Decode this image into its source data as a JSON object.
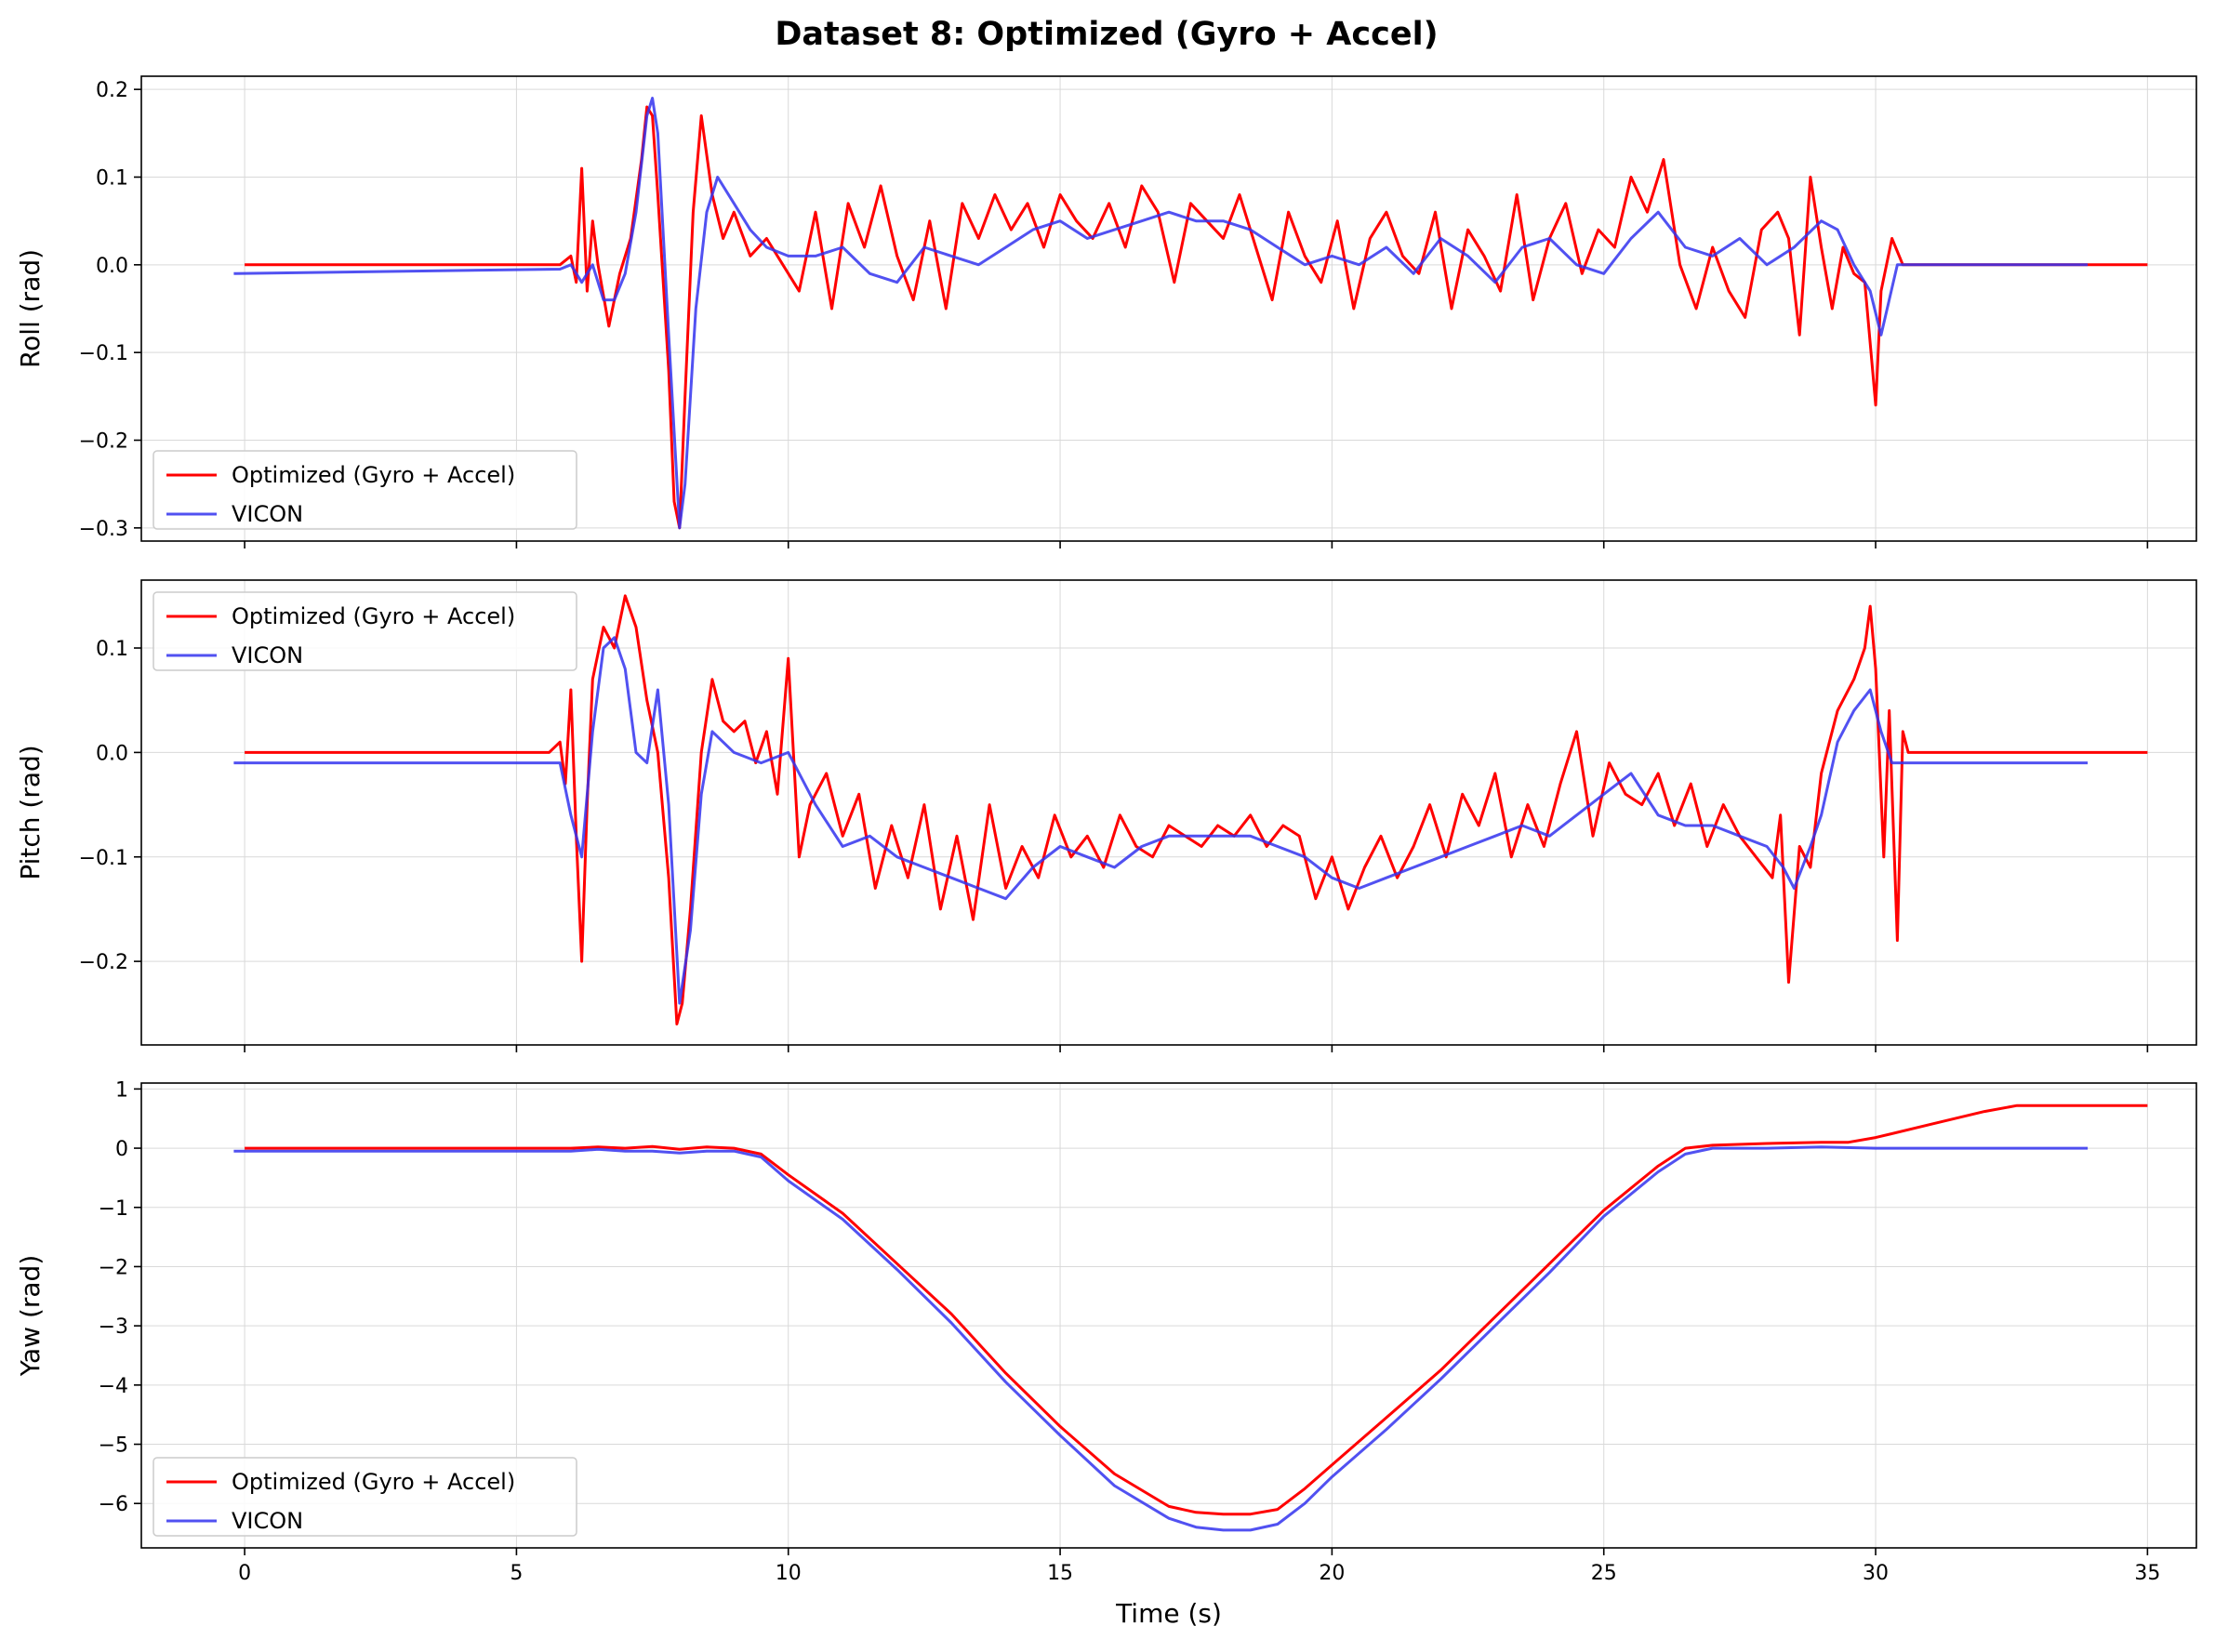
{
  "title": "Dataset 8: Optimized (Gyro + Accel)",
  "colors": {
    "optimized": "#ff0000",
    "vicon": "#3333ee",
    "grid": "#d9d9d9"
  },
  "chart_data": [
    {
      "type": "line",
      "ylabel": "Roll (rad)",
      "xlabel": "",
      "xlim": [
        -1.9,
        35.9
      ],
      "ylim": [
        -0.315,
        0.215
      ],
      "yticks": [
        -0.3,
        -0.2,
        -0.1,
        0.0,
        0.1,
        0.2
      ],
      "ytick_labels": [
        "−0.3",
        "−0.2",
        "−0.1",
        "0.0",
        "0.1",
        "0.2"
      ],
      "xticks": [
        0,
        5,
        10,
        15,
        20,
        25,
        30,
        35
      ],
      "show_xtick_labels": false,
      "grid": true,
      "legend_position": "lower-left",
      "series": [
        {
          "name": "Optimized (Gyro + Accel)",
          "color": "#ff0000",
          "x": [
            0,
            5.8,
            6.0,
            6.1,
            6.2,
            6.3,
            6.4,
            6.5,
            6.7,
            6.9,
            7.1,
            7.3,
            7.4,
            7.5,
            7.6,
            7.8,
            7.9,
            8.0,
            8.1,
            8.25,
            8.4,
            8.6,
            8.8,
            9.0,
            9.3,
            9.6,
            9.9,
            10.2,
            10.5,
            10.8,
            11.1,
            11.4,
            11.7,
            12.0,
            12.3,
            12.6,
            12.9,
            13.2,
            13.5,
            13.8,
            14.1,
            14.4,
            14.7,
            15.0,
            15.3,
            15.6,
            15.9,
            16.2,
            16.5,
            16.8,
            17.1,
            17.4,
            17.7,
            18.0,
            18.3,
            18.6,
            18.9,
            19.2,
            19.5,
            19.8,
            20.1,
            20.4,
            20.7,
            21.0,
            21.3,
            21.6,
            21.9,
            22.2,
            22.5,
            22.8,
            23.1,
            23.4,
            23.7,
            24.0,
            24.3,
            24.6,
            24.9,
            25.2,
            25.5,
            25.8,
            26.1,
            26.4,
            26.7,
            27.0,
            27.3,
            27.6,
            27.9,
            28.2,
            28.4,
            28.6,
            28.8,
            29.0,
            29.2,
            29.4,
            29.6,
            29.8,
            30.0,
            30.1,
            30.3,
            30.5,
            31.0,
            32.0,
            33.0,
            34.0,
            35.0
          ],
          "y": [
            0.0,
            0.0,
            0.01,
            -0.02,
            0.11,
            -0.03,
            0.05,
            0.0,
            -0.07,
            -0.01,
            0.03,
            0.12,
            0.18,
            0.17,
            0.08,
            -0.12,
            -0.27,
            -0.3,
            -0.15,
            0.06,
            0.17,
            0.08,
            0.03,
            0.06,
            0.01,
            0.03,
            0.0,
            -0.03,
            0.06,
            -0.05,
            0.07,
            0.02,
            0.09,
            0.01,
            -0.04,
            0.05,
            -0.05,
            0.07,
            0.03,
            0.08,
            0.04,
            0.07,
            0.02,
            0.08,
            0.05,
            0.03,
            0.07,
            0.02,
            0.09,
            0.06,
            -0.02,
            0.07,
            0.05,
            0.03,
            0.08,
            0.02,
            -0.04,
            0.06,
            0.01,
            -0.02,
            0.05,
            -0.05,
            0.03,
            0.06,
            0.01,
            -0.01,
            0.06,
            -0.05,
            0.04,
            0.01,
            -0.03,
            0.08,
            -0.04,
            0.03,
            0.07,
            -0.01,
            0.04,
            0.02,
            0.1,
            0.06,
            0.12,
            0.0,
            -0.05,
            0.02,
            -0.03,
            -0.06,
            0.04,
            0.06,
            0.03,
            -0.08,
            0.1,
            0.02,
            -0.05,
            0.02,
            -0.01,
            -0.02,
            -0.16,
            -0.03,
            0.03,
            0.0,
            0.0,
            0.0,
            0.0,
            0.0,
            0.0
          ]
        },
        {
          "name": "VICON",
          "color": "#3333ee",
          "x": [
            -0.2,
            5.8,
            6.0,
            6.2,
            6.4,
            6.6,
            6.8,
            7.0,
            7.2,
            7.4,
            7.5,
            7.6,
            7.8,
            8.0,
            8.1,
            8.3,
            8.5,
            8.7,
            9.0,
            9.3,
            9.6,
            10.0,
            10.5,
            11.0,
            11.5,
            12.0,
            12.5,
            13.0,
            13.5,
            14.0,
            14.5,
            15.0,
            15.5,
            16.0,
            16.5,
            17.0,
            17.5,
            18.0,
            18.5,
            19.0,
            19.5,
            20.0,
            20.5,
            21.0,
            21.5,
            22.0,
            22.5,
            23.0,
            23.5,
            24.0,
            24.5,
            25.0,
            25.5,
            26.0,
            26.5,
            27.0,
            27.5,
            28.0,
            28.5,
            29.0,
            29.3,
            29.6,
            29.9,
            30.1,
            30.4,
            31.0,
            32.0,
            33.0,
            33.9
          ],
          "y": [
            -0.01,
            -0.005,
            0.0,
            -0.02,
            0.0,
            -0.04,
            -0.04,
            -0.01,
            0.06,
            0.17,
            0.19,
            0.15,
            -0.08,
            -0.3,
            -0.25,
            -0.05,
            0.06,
            0.1,
            0.07,
            0.04,
            0.02,
            0.01,
            0.01,
            0.02,
            -0.01,
            -0.02,
            0.02,
            0.01,
            0.0,
            0.02,
            0.04,
            0.05,
            0.03,
            0.04,
            0.05,
            0.06,
            0.05,
            0.05,
            0.04,
            0.02,
            0.0,
            0.01,
            0.0,
            0.02,
            -0.01,
            0.03,
            0.01,
            -0.02,
            0.02,
            0.03,
            0.0,
            -0.01,
            0.03,
            0.06,
            0.02,
            0.01,
            0.03,
            0.0,
            0.02,
            0.05,
            0.04,
            0.0,
            -0.03,
            -0.08,
            0.0,
            0.0,
            0.0,
            0.0,
            0.0
          ]
        }
      ]
    },
    {
      "type": "line",
      "ylabel": "Pitch (rad)",
      "xlabel": "",
      "xlim": [
        -1.9,
        35.9
      ],
      "ylim": [
        -0.28,
        0.165
      ],
      "yticks": [
        -0.2,
        -0.1,
        0.0,
        0.1
      ],
      "ytick_labels": [
        "−0.2",
        "−0.1",
        "0.0",
        "0.1"
      ],
      "xticks": [
        0,
        5,
        10,
        15,
        20,
        25,
        30,
        35
      ],
      "show_xtick_labels": false,
      "grid": true,
      "legend_position": "upper-left",
      "series": [
        {
          "name": "Optimized (Gyro + Accel)",
          "color": "#ff0000",
          "x": [
            0,
            5.6,
            5.8,
            5.9,
            6.0,
            6.1,
            6.2,
            6.3,
            6.4,
            6.6,
            6.8,
            7.0,
            7.2,
            7.4,
            7.6,
            7.8,
            7.95,
            8.05,
            8.2,
            8.4,
            8.6,
            8.8,
            9.0,
            9.2,
            9.4,
            9.6,
            9.8,
            10.0,
            10.2,
            10.4,
            10.7,
            11.0,
            11.3,
            11.6,
            11.9,
            12.2,
            12.5,
            12.8,
            13.1,
            13.4,
            13.7,
            14.0,
            14.3,
            14.6,
            14.9,
            15.2,
            15.5,
            15.8,
            16.1,
            16.4,
            16.7,
            17.0,
            17.3,
            17.6,
            17.9,
            18.2,
            18.5,
            18.8,
            19.1,
            19.4,
            19.7,
            20.0,
            20.3,
            20.6,
            20.9,
            21.2,
            21.5,
            21.8,
            22.1,
            22.4,
            22.7,
            23.0,
            23.3,
            23.6,
            23.9,
            24.2,
            24.5,
            24.8,
            25.1,
            25.4,
            25.7,
            26.0,
            26.3,
            26.6,
            26.9,
            27.2,
            27.5,
            27.8,
            28.1,
            28.25,
            28.4,
            28.6,
            28.8,
            29.0,
            29.3,
            29.6,
            29.8,
            29.9,
            30.0,
            30.15,
            30.25,
            30.4,
            30.5,
            30.6,
            31.0,
            32.0,
            33.0,
            34.0,
            35.0
          ],
          "y": [
            0.0,
            0.0,
            0.01,
            -0.03,
            0.06,
            -0.08,
            -0.2,
            -0.05,
            0.07,
            0.12,
            0.1,
            0.15,
            0.12,
            0.05,
            0.0,
            -0.12,
            -0.26,
            -0.24,
            -0.15,
            0.0,
            0.07,
            0.03,
            0.02,
            0.03,
            -0.01,
            0.02,
            -0.04,
            0.09,
            -0.1,
            -0.05,
            -0.02,
            -0.08,
            -0.04,
            -0.13,
            -0.07,
            -0.12,
            -0.05,
            -0.15,
            -0.08,
            -0.16,
            -0.05,
            -0.13,
            -0.09,
            -0.12,
            -0.06,
            -0.1,
            -0.08,
            -0.11,
            -0.06,
            -0.09,
            -0.1,
            -0.07,
            -0.08,
            -0.09,
            -0.07,
            -0.08,
            -0.06,
            -0.09,
            -0.07,
            -0.08,
            -0.14,
            -0.1,
            -0.15,
            -0.11,
            -0.08,
            -0.12,
            -0.09,
            -0.05,
            -0.1,
            -0.04,
            -0.07,
            -0.02,
            -0.1,
            -0.05,
            -0.09,
            -0.03,
            0.02,
            -0.08,
            -0.01,
            -0.04,
            -0.05,
            -0.02,
            -0.07,
            -0.03,
            -0.09,
            -0.05,
            -0.08,
            -0.1,
            -0.12,
            -0.06,
            -0.22,
            -0.09,
            -0.11,
            -0.02,
            0.04,
            0.07,
            0.1,
            0.14,
            0.08,
            -0.1,
            0.04,
            -0.18,
            0.02,
            0.0,
            0.0,
            0.0,
            0.0,
            0.0,
            0.0
          ]
        },
        {
          "name": "VICON",
          "color": "#3333ee",
          "x": [
            -0.2,
            5.5,
            5.8,
            6.0,
            6.2,
            6.4,
            6.6,
            6.8,
            7.0,
            7.2,
            7.4,
            7.6,
            7.8,
            8.0,
            8.2,
            8.4,
            8.6,
            9.0,
            9.5,
            10.0,
            10.5,
            11.0,
            11.5,
            12.0,
            12.5,
            13.0,
            13.5,
            14.0,
            14.5,
            15.0,
            15.5,
            16.0,
            16.5,
            17.0,
            17.5,
            18.0,
            18.5,
            19.0,
            19.5,
            20.0,
            20.5,
            21.0,
            21.5,
            22.0,
            22.5,
            23.0,
            23.5,
            24.0,
            24.5,
            25.0,
            25.5,
            26.0,
            26.5,
            27.0,
            27.5,
            28.0,
            28.3,
            28.5,
            28.8,
            29.0,
            29.3,
            29.6,
            29.9,
            30.1,
            30.3,
            30.5,
            31.0,
            32.0,
            33.0,
            33.9
          ],
          "y": [
            -0.01,
            -0.01,
            -0.01,
            -0.06,
            -0.1,
            0.02,
            0.1,
            0.11,
            0.08,
            0.0,
            -0.01,
            0.06,
            -0.05,
            -0.24,
            -0.17,
            -0.04,
            0.02,
            0.0,
            -0.01,
            0.0,
            -0.05,
            -0.09,
            -0.08,
            -0.1,
            -0.11,
            -0.12,
            -0.13,
            -0.14,
            -0.11,
            -0.09,
            -0.1,
            -0.11,
            -0.09,
            -0.08,
            -0.08,
            -0.08,
            -0.08,
            -0.09,
            -0.1,
            -0.12,
            -0.13,
            -0.12,
            -0.11,
            -0.1,
            -0.09,
            -0.08,
            -0.07,
            -0.08,
            -0.06,
            -0.04,
            -0.02,
            -0.06,
            -0.07,
            -0.07,
            -0.08,
            -0.09,
            -0.11,
            -0.13,
            -0.09,
            -0.06,
            0.01,
            0.04,
            0.06,
            0.02,
            -0.01,
            -0.01,
            -0.01,
            -0.01,
            -0.01,
            -0.01
          ]
        }
      ]
    },
    {
      "type": "line",
      "ylabel": "Yaw (rad)",
      "xlabel": "Time (s)",
      "xlim": [
        -1.9,
        35.9
      ],
      "ylim": [
        -6.75,
        1.1
      ],
      "yticks": [
        -6,
        -5,
        -4,
        -3,
        -2,
        -1,
        0,
        1
      ],
      "ytick_labels": [
        "−6",
        "−5",
        "−4",
        "−3",
        "−2",
        "−1",
        "0",
        "1"
      ],
      "xticks": [
        0,
        5,
        10,
        15,
        20,
        25,
        30,
        35
      ],
      "xtick_labels": [
        "0",
        "5",
        "10",
        "15",
        "20",
        "25",
        "30",
        "35"
      ],
      "show_xtick_labels": true,
      "grid": true,
      "legend_position": "lower-left",
      "series": [
        {
          "name": "Optimized (Gyro + Accel)",
          "color": "#ff0000",
          "x": [
            0,
            5.5,
            6.0,
            6.5,
            7.0,
            7.5,
            8.0,
            8.5,
            9.0,
            9.5,
            10.0,
            11.0,
            12.0,
            13.0,
            14.0,
            15.0,
            16.0,
            17.0,
            17.5,
            18.0,
            18.5,
            19.0,
            19.5,
            20.0,
            21.0,
            22.0,
            23.0,
            24.0,
            25.0,
            26.0,
            26.5,
            27.0,
            28.0,
            29.0,
            29.5,
            30.0,
            31.0,
            32.0,
            32.6,
            33.0,
            34.0,
            35.0
          ],
          "y": [
            0.0,
            0.0,
            0.0,
            0.02,
            0.0,
            0.03,
            -0.02,
            0.02,
            0.0,
            -0.1,
            -0.45,
            -1.1,
            -1.95,
            -2.8,
            -3.8,
            -4.7,
            -5.5,
            -6.05,
            -6.15,
            -6.18,
            -6.18,
            -6.1,
            -5.75,
            -5.35,
            -4.55,
            -3.75,
            -2.85,
            -1.95,
            -1.05,
            -0.3,
            0.0,
            0.05,
            0.08,
            0.1,
            0.1,
            0.18,
            0.4,
            0.62,
            0.72,
            0.72,
            0.72,
            0.72
          ]
        },
        {
          "name": "VICON",
          "color": "#3333ee",
          "x": [
            -0.2,
            5.5,
            6.0,
            6.5,
            7.0,
            7.5,
            8.0,
            8.5,
            9.0,
            9.5,
            10.0,
            11.0,
            12.0,
            13.0,
            14.0,
            15.0,
            16.0,
            17.0,
            17.5,
            18.0,
            18.5,
            19.0,
            19.5,
            20.0,
            21.0,
            22.0,
            23.0,
            24.0,
            25.0,
            26.0,
            26.5,
            27.0,
            28.0,
            29.0,
            30.0,
            31.0,
            32.0,
            33.0,
            33.9
          ],
          "y": [
            -0.05,
            -0.05,
            -0.05,
            -0.02,
            -0.05,
            -0.05,
            -0.08,
            -0.05,
            -0.05,
            -0.15,
            -0.55,
            -1.2,
            -2.05,
            -2.95,
            -3.95,
            -4.85,
            -5.7,
            -6.25,
            -6.4,
            -6.45,
            -6.45,
            -6.35,
            -6.0,
            -5.55,
            -4.75,
            -3.9,
            -3.0,
            -2.1,
            -1.15,
            -0.4,
            -0.1,
            0.0,
            0.0,
            0.02,
            0.0,
            0.0,
            0.0,
            0.0,
            0.0
          ]
        }
      ]
    }
  ]
}
